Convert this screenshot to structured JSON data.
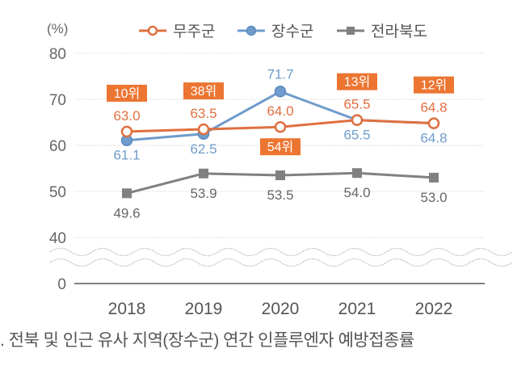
{
  "chart_data": {
    "type": "line",
    "title": "",
    "xlabel": "",
    "ylabel": "(%)",
    "categories": [
      "2018",
      "2019",
      "2020",
      "2021",
      "2022"
    ],
    "y_ticks": [
      "80",
      "70",
      "60",
      "50",
      "40",
      "0"
    ],
    "y_tick_values": [
      80,
      70,
      60,
      50,
      40,
      0
    ],
    "ylim": [
      0,
      80
    ],
    "axis_break": "between 0 and 40",
    "grid": true,
    "legend_position": "top",
    "series": [
      {
        "name": "무주군",
        "color": "#E07040",
        "marker": "hollow-circle",
        "values": [
          63.0,
          63.5,
          64.0,
          65.5,
          64.8
        ],
        "labels": [
          "63.0",
          "63.5",
          "64.0",
          "65.5",
          "64.8"
        ],
        "rank_labels": [
          "10위",
          "38위",
          "54위",
          "13위",
          "12위"
        ]
      },
      {
        "name": "장수군",
        "color": "#6F9CCB",
        "marker": "filled-circle",
        "values": [
          61.1,
          62.5,
          71.7,
          65.5,
          64.8
        ],
        "labels": [
          "61.1",
          "62.5",
          "71.7",
          "65.5",
          "64.8"
        ]
      },
      {
        "name": "전라북도",
        "color": "#808080",
        "marker": "square",
        "values": [
          49.6,
          53.9,
          53.5,
          54.0,
          53.0
        ],
        "labels": [
          "49.6",
          "53.9",
          "53.5",
          "54.0",
          "53.0"
        ]
      }
    ],
    "rank_badge_color": "#EC7532"
  },
  "caption": ". 전북 및 인근 유사 지역(장수군) 연간 인플루엔자 예방접종률"
}
